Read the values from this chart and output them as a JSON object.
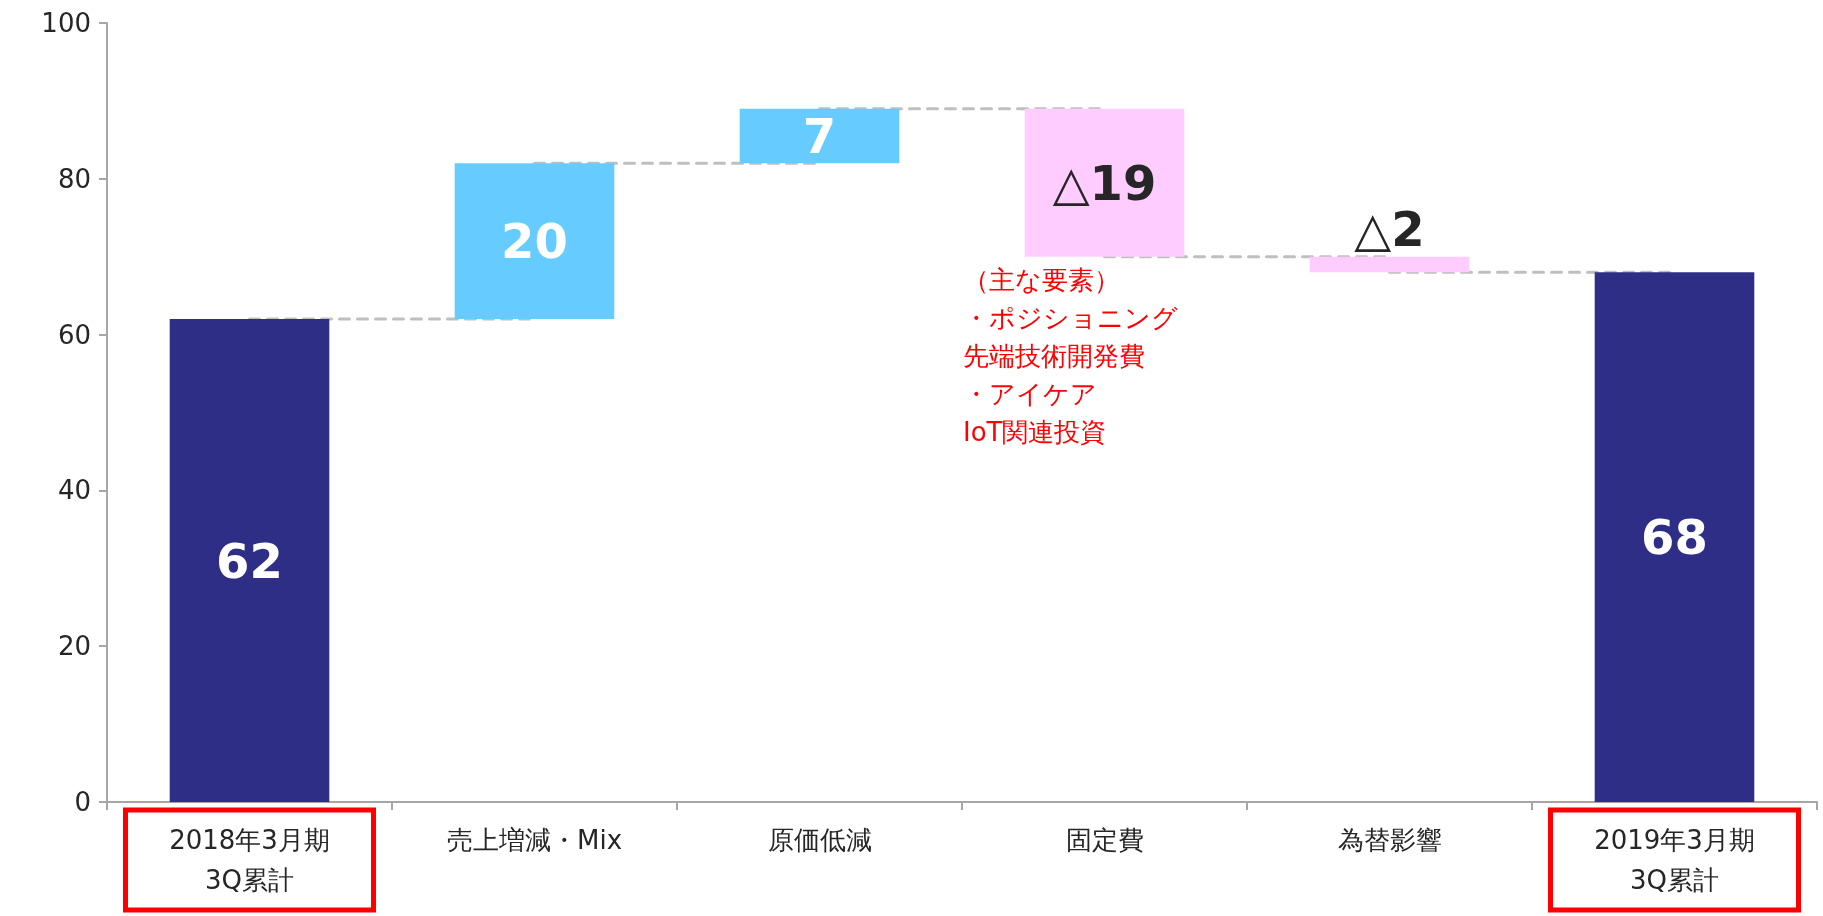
{
  "chart_data": {
    "type": "bar",
    "categories": [
      "2018年3月期\n3Q累計",
      "売上増減・Mix",
      "原価低減",
      "固定費",
      "為替影響",
      "2019年3月期\n3Q累計"
    ],
    "series": [
      {
        "values": [
          62,
          20,
          7,
          -19,
          -2,
          68
        ],
        "base": [
          0,
          62,
          82,
          89,
          70,
          0
        ],
        "colors": [
          "#2e2e86",
          "#66ccff",
          "#66ccff",
          "#ffccff",
          "#ffccff",
          "#2e2e86"
        ],
        "value_labels": [
          "62",
          "20",
          "7",
          "△19",
          "△2",
          "68"
        ]
      },
      {
        "type": "line",
        "color": "#bfbfbf",
        "line_style": "dashed",
        "marker": "none",
        "values": [
          62,
          62,
          null,
          null,
          null,
          null
        ]
      },
      {
        "type": "line",
        "color": "#bfbfbf",
        "line_style": "dashed",
        "marker": "none",
        "values": [
          null,
          82,
          82,
          null,
          null,
          null
        ]
      },
      {
        "type": "line",
        "color": "#bfbfbf",
        "line_style": "dashed",
        "marker": "none",
        "values": [
          null,
          null,
          89,
          89,
          null,
          null
        ]
      },
      {
        "type": "line",
        "color": "#bfbfbf",
        "line_style": "dashed",
        "marker": "none",
        "values": [
          null,
          null,
          null,
          70,
          70,
          null
        ]
      },
      {
        "type": "line",
        "color": "#bfbfbf",
        "line_style": "dashed",
        "marker": "none",
        "values": [
          null,
          null,
          null,
          null,
          68,
          68
        ]
      }
    ],
    "ylim": [
      0,
      100
    ],
    "yticks": [
      0,
      20,
      40,
      60,
      80,
      100
    ],
    "grid": false,
    "annotations": [
      "（主な要素）",
      "・ポジショニング",
      "先端技術開発費",
      "・アイケア",
      "IoT関連投資"
    ]
  }
}
